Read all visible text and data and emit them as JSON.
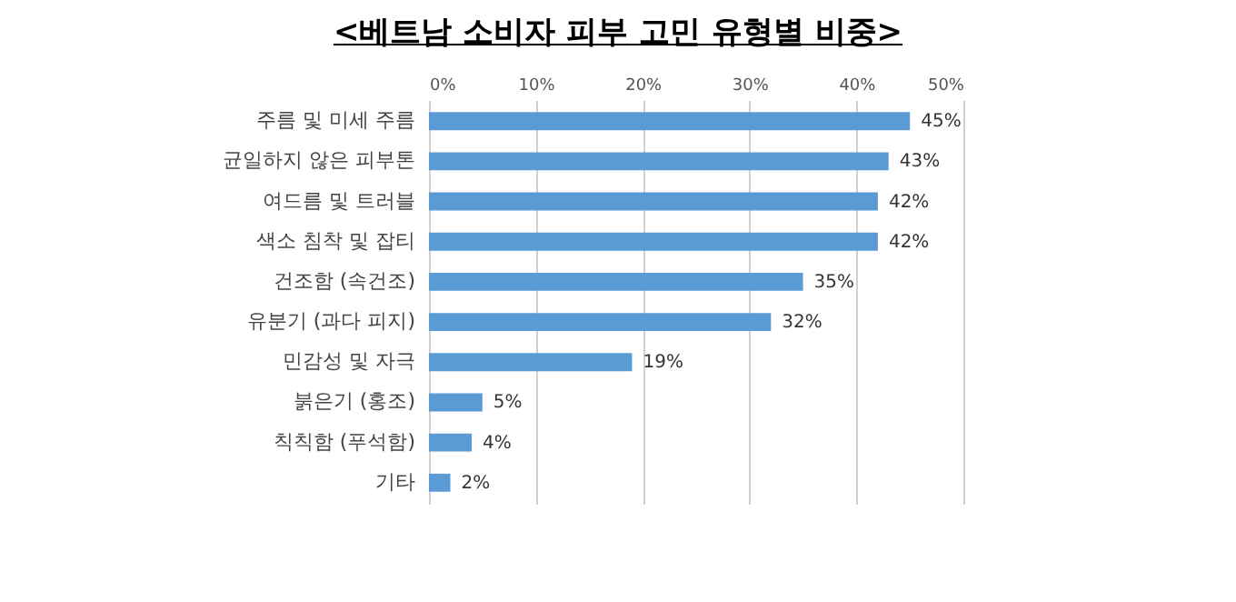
{
  "chart_data": {
    "type": "bar",
    "orientation": "horizontal",
    "title": "<베트남 소비자 피부 고민 유형별 비중>",
    "categories": [
      "주름 및 미세 주름",
      "균일하지 않은 피부톤",
      "여드름 및 트러블",
      "색소 침착 및 잡티",
      "건조함 (속건조)",
      "유분기 (과다 피지)",
      "민감성 및 자극",
      "붉은기 (홍조)",
      "칙칙함 (푸석함)",
      "기타"
    ],
    "values": [
      45,
      43,
      42,
      42,
      35,
      32,
      19,
      5,
      4,
      2
    ],
    "value_labels": [
      "45%",
      "43%",
      "42%",
      "42%",
      "35%",
      "32%",
      "19%",
      "5%",
      "4%",
      "2%"
    ],
    "color": "#5b9bd5",
    "xlim": [
      0,
      50
    ],
    "xticks": [
      {
        "value": 0,
        "label": "0%"
      },
      {
        "value": 10,
        "label": "10%"
      },
      {
        "value": 20,
        "label": "20%"
      },
      {
        "value": 30,
        "label": "30%"
      },
      {
        "value": 40,
        "label": "40%"
      },
      {
        "value": 50,
        "label": "50%"
      }
    ],
    "grid": "x"
  }
}
